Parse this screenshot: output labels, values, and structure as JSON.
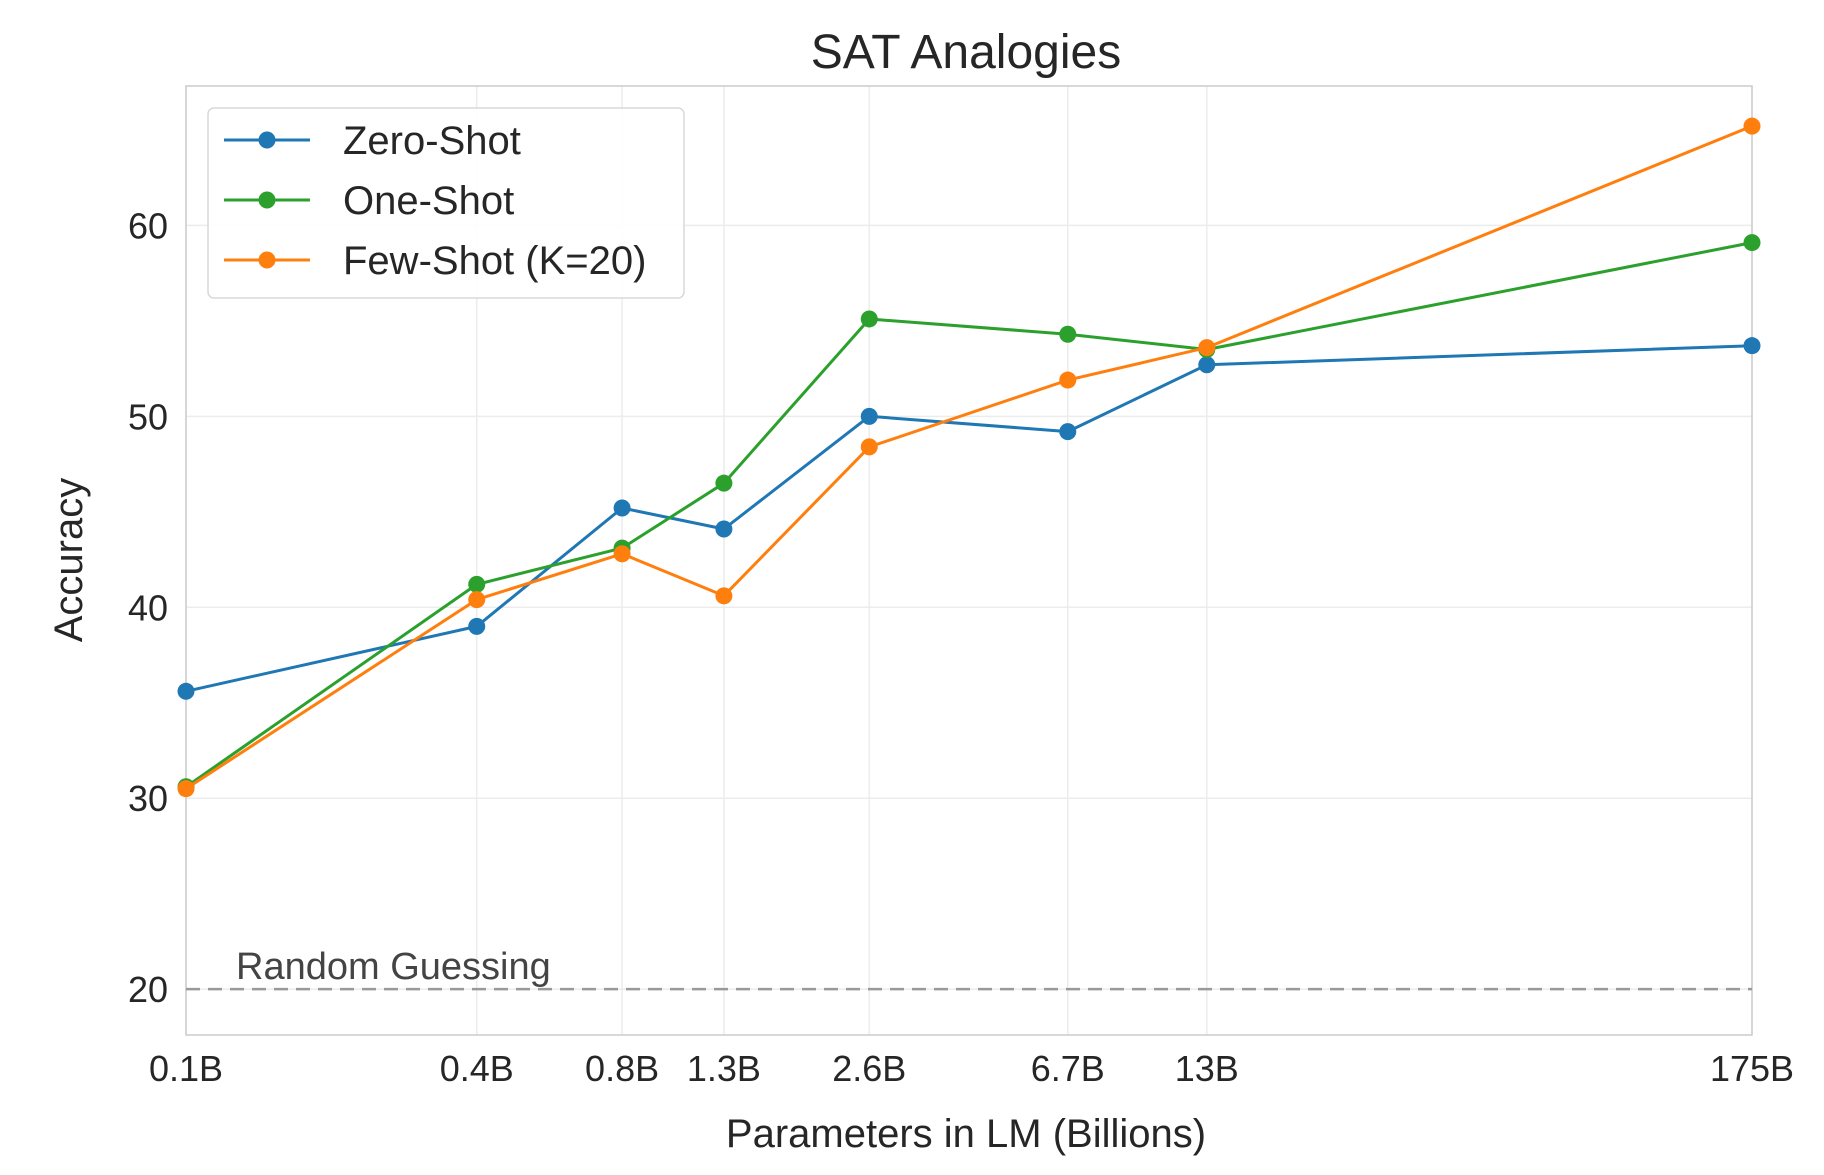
{
  "chart_data": {
    "type": "line",
    "title": "SAT Analogies",
    "xlabel": "Parameters in LM (Billions)",
    "ylabel": "Accuracy",
    "x_scale": "log",
    "x": [
      0.1,
      0.4,
      0.8,
      1.3,
      2.6,
      6.7,
      13,
      175
    ],
    "x_tick_labels": [
      "0.1B",
      "0.4B",
      "0.8B",
      "1.3B",
      "2.6B",
      "6.7B",
      "13B",
      "175B"
    ],
    "y_ticks": [
      20,
      30,
      40,
      50,
      60
    ],
    "ylim": [
      17.6,
      67.3
    ],
    "grid": true,
    "legend_position": "upper-left",
    "series": [
      {
        "name": "Zero-Shot",
        "color": "#1f77b4",
        "values": [
          35.6,
          39.0,
          45.2,
          44.1,
          50.0,
          49.2,
          52.7,
          53.7
        ]
      },
      {
        "name": "One-Shot",
        "color": "#2ca02c",
        "values": [
          30.6,
          41.2,
          43.1,
          46.5,
          55.1,
          54.3,
          53.5,
          59.1
        ]
      },
      {
        "name": "Few-Shot (K=20)",
        "color": "#ff7f0e",
        "values": [
          30.5,
          40.4,
          42.8,
          40.6,
          48.4,
          51.9,
          53.6,
          65.2
        ]
      }
    ],
    "reference_line": {
      "y": 20,
      "label": "Random Guessing",
      "color": "#999999"
    }
  }
}
